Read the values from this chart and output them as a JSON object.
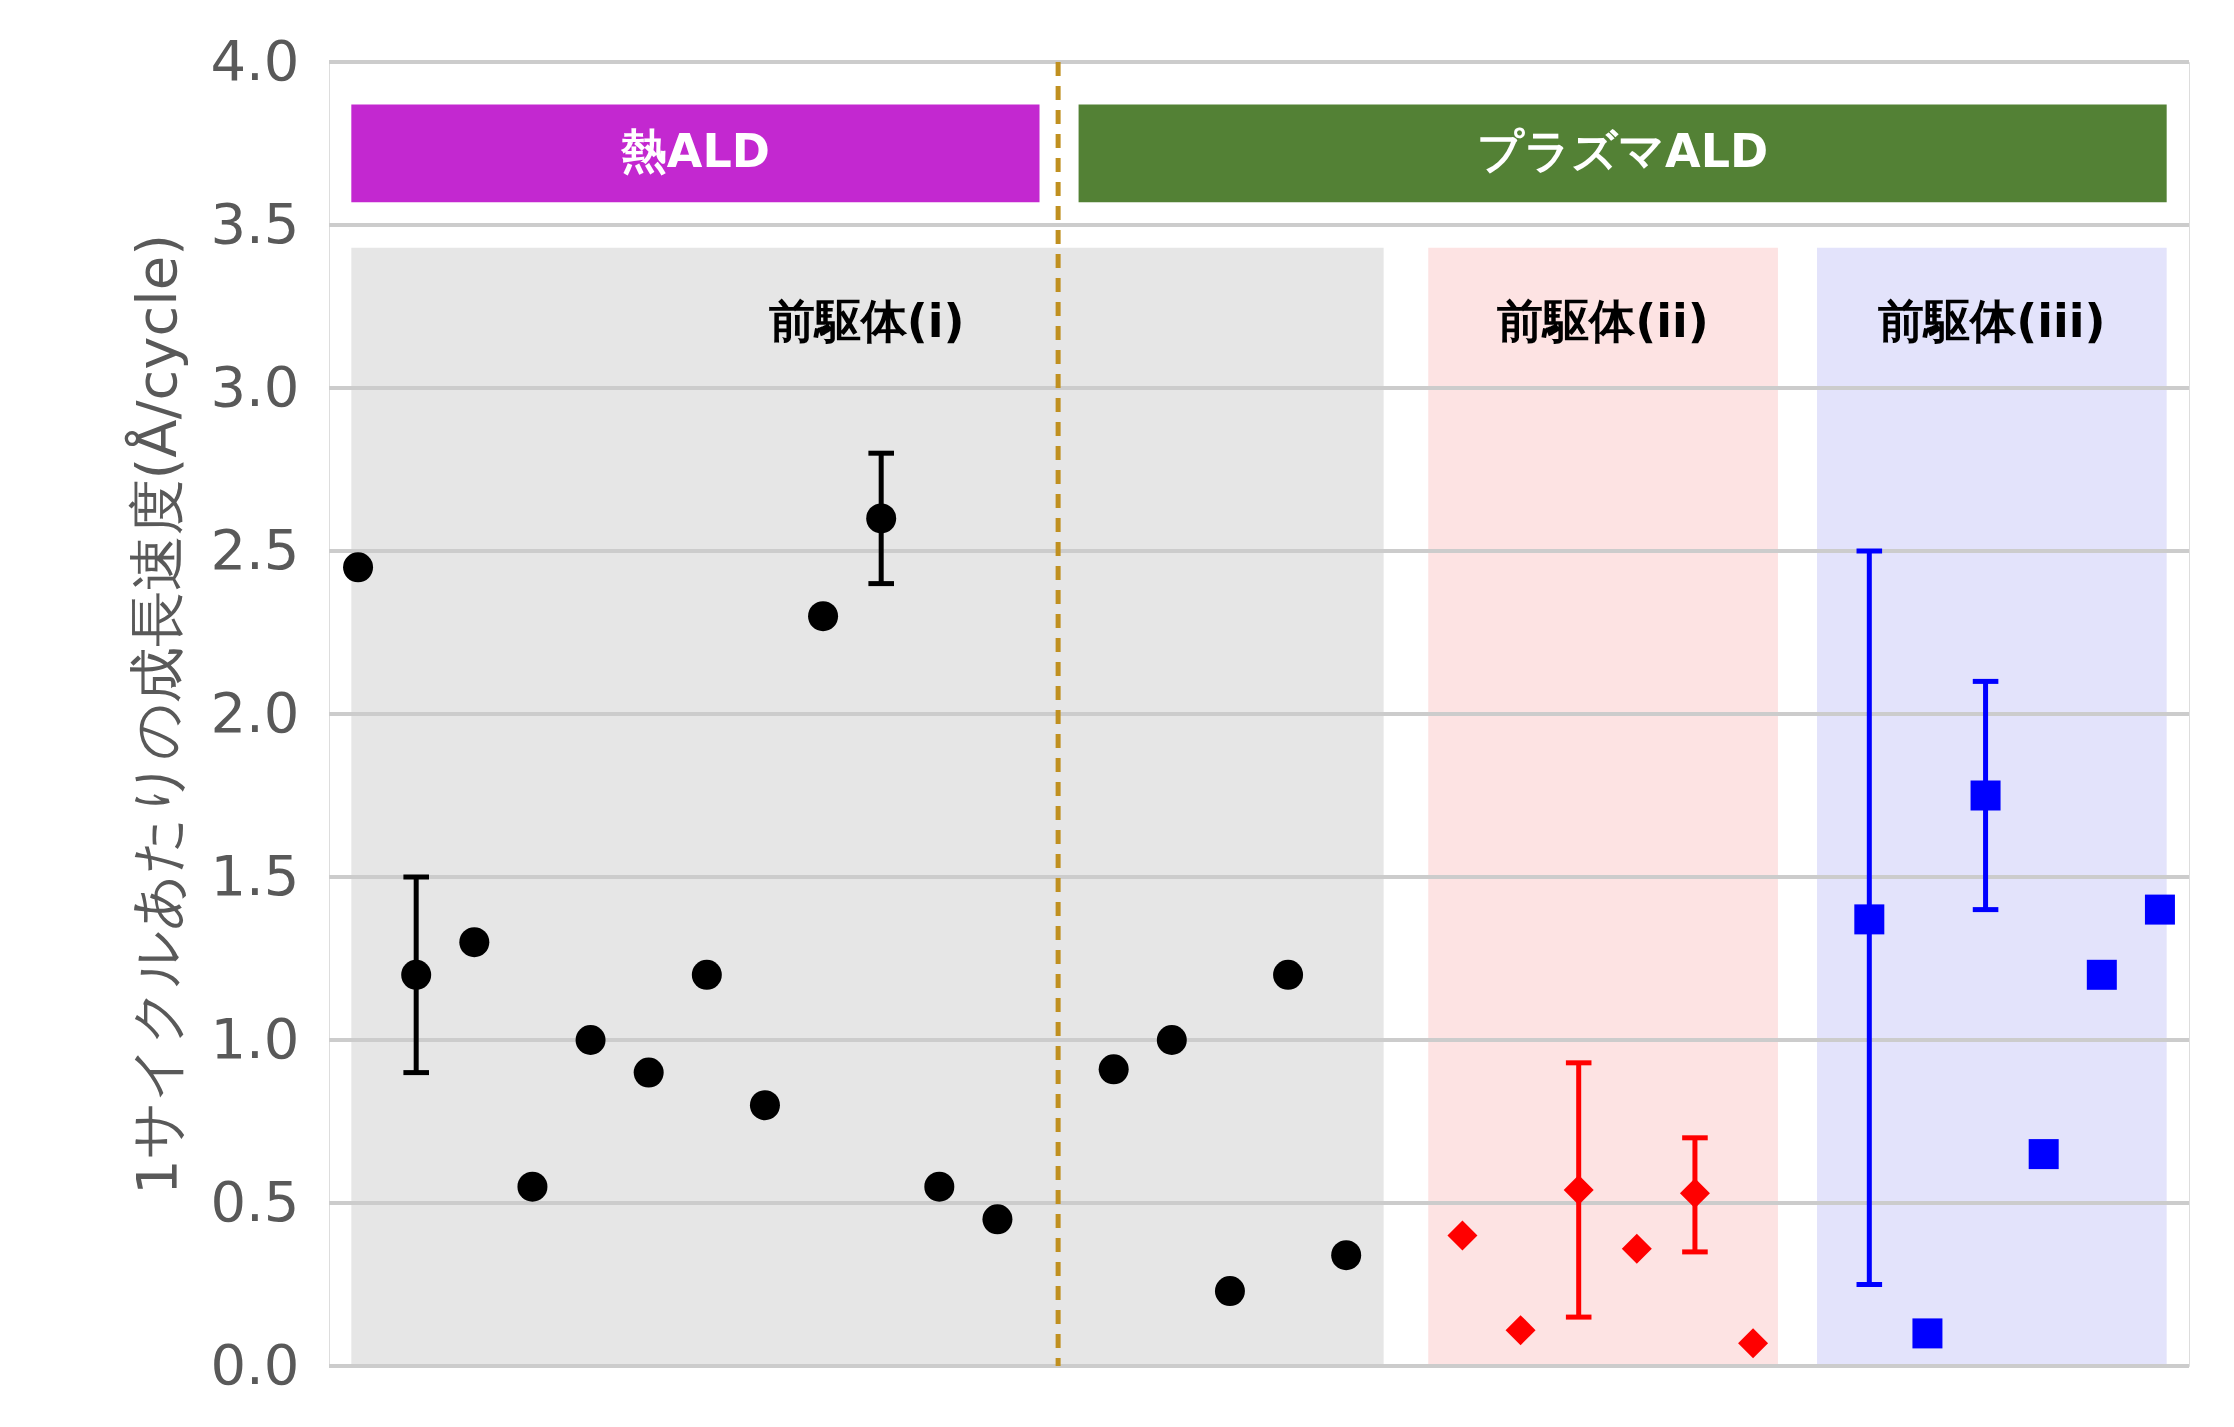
{
  "chart_data": {
    "type": "scatter",
    "ylabel": "1サイクルあたりの成長速度(Å/cycle)",
    "categories": [
      null,
      null,
      null,
      null,
      null,
      null,
      null,
      null,
      null,
      null,
      null,
      null,
      null,
      null,
      null,
      null,
      null,
      null,
      null,
      null,
      null,
      null,
      null,
      null,
      null,
      null,
      null,
      null,
      null,
      null,
      null,
      null
    ],
    "ylim": [
      0,
      4.0
    ],
    "yticks": [
      {
        "value": 0,
        "label": "0.0"
      },
      0.5,
      {
        "value": 1,
        "label": "1.0"
      },
      1.5,
      {
        "value": 2,
        "label": "2.0"
      },
      2.5,
      {
        "value": 3,
        "label": "3.0"
      },
      3.5,
      {
        "value": 4,
        "label": "4.0"
      }
    ],
    "grid": "y",
    "tick_labels": "y",
    "annotations": [
      "熱ALD",
      "プラズマALD",
      "前駆体(i)",
      "前駆体(ii)",
      "前駆体(iii)"
    ],
    "series": [
      {
        "color": "#000000",
        "marker": "circle",
        "values": [
          2.45,
          1.2,
          1.3,
          0.55,
          1.0,
          0.9,
          1.2,
          0.8,
          2.3,
          2.6,
          0.55,
          0.45,
          null,
          null,
          null,
          null,
          null,
          null,
          null,
          null,
          null,
          null,
          null,
          null,
          null,
          null,
          null,
          null,
          null,
          null,
          null,
          null
        ],
        "errors": [
          null,
          [
            0.9,
            1.5
          ],
          null,
          null,
          null,
          null,
          null,
          null,
          null,
          [
            2.4,
            2.8
          ],
          null,
          null,
          null,
          null,
          null,
          null,
          null,
          null,
          null,
          null,
          null,
          null,
          null,
          null,
          null,
          null,
          null,
          null,
          null,
          null,
          null,
          null
        ]
      },
      {
        "color": "#000000",
        "marker": "circle",
        "values": [
          null,
          null,
          null,
          null,
          null,
          null,
          null,
          null,
          null,
          null,
          null,
          null,
          null,
          0.91,
          1.0,
          0.23,
          1.2,
          0.34,
          null,
          null,
          null,
          null,
          null,
          null,
          null,
          null,
          null,
          null,
          null,
          null,
          null,
          null
        ]
      },
      {
        "color": "#ff0000",
        "marker": "diamond",
        "values": [
          null,
          null,
          null,
          null,
          null,
          null,
          null,
          null,
          null,
          null,
          null,
          null,
          null,
          null,
          null,
          null,
          null,
          null,
          null,
          0.4,
          0.11,
          0.54,
          0.36,
          0.53,
          0.07,
          null,
          null,
          null,
          null,
          null,
          null,
          null
        ],
        "errors": [
          null,
          null,
          null,
          null,
          null,
          null,
          null,
          null,
          null,
          null,
          null,
          null,
          null,
          null,
          null,
          null,
          null,
          null,
          null,
          null,
          null,
          [
            0.15,
            0.93
          ],
          null,
          [
            0.35,
            0.7
          ],
          null,
          null,
          null,
          null,
          null,
          null,
          null,
          null
        ]
      },
      {
        "color": "#0000ff",
        "marker": "square",
        "values": [
          null,
          null,
          null,
          null,
          null,
          null,
          null,
          null,
          null,
          null,
          null,
          null,
          null,
          null,
          null,
          null,
          null,
          null,
          null,
          null,
          null,
          null,
          null,
          null,
          null,
          null,
          1.37,
          0.1,
          1.75,
          0.65,
          1.2,
          1.4
        ],
        "errors": [
          null,
          null,
          null,
          null,
          null,
          null,
          null,
          null,
          null,
          null,
          null,
          null,
          null,
          null,
          null,
          null,
          null,
          null,
          null,
          null,
          null,
          null,
          null,
          null,
          null,
          null,
          [
            0.25,
            2.5
          ],
          null,
          [
            1.4,
            2.1
          ],
          null,
          null,
          null
        ]
      }
    ]
  }
}
